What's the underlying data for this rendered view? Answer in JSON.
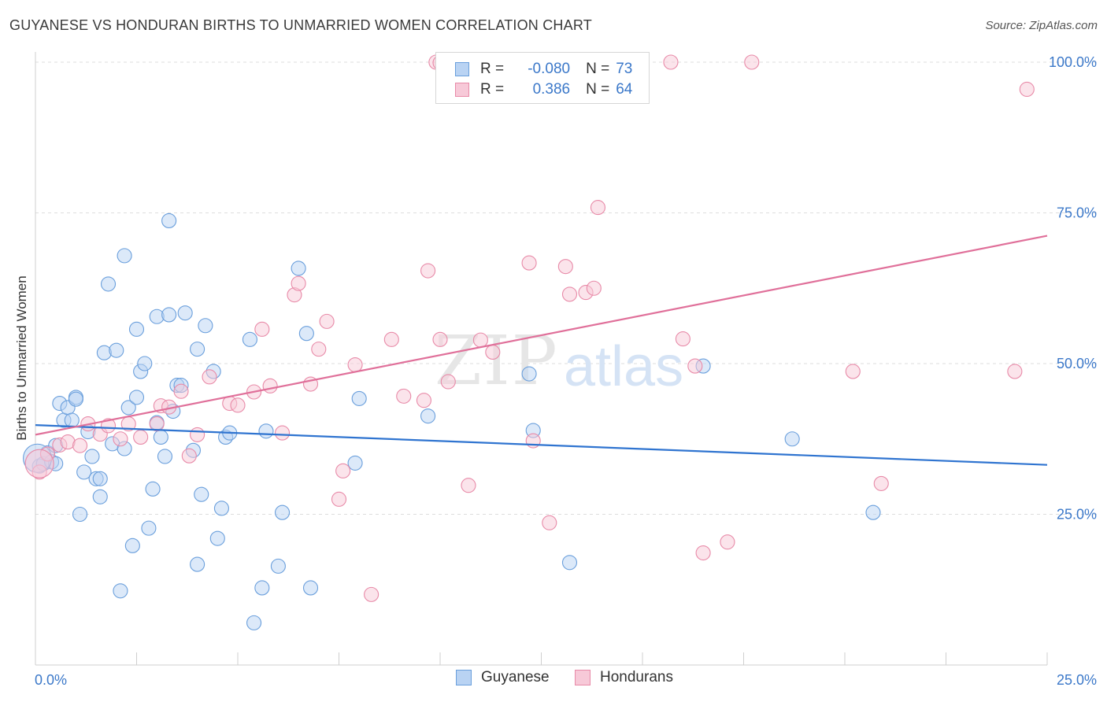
{
  "title": "GUYANESE VS HONDURAN BIRTHS TO UNMARRIED WOMEN CORRELATION CHART",
  "source": "Source: ZipAtlas.com",
  "watermark": {
    "zip": "ZIP",
    "atlas": "atlas"
  },
  "legend": {
    "rows": [
      {
        "r_label": "R =",
        "r_value": "-0.080",
        "n_label": "N =",
        "n_value": "73",
        "color": "#a9c8f0",
        "border": "#6a9fdc"
      },
      {
        "r_label": "R =",
        "r_value": "0.386",
        "n_label": "N =",
        "n_value": "64",
        "color": "#f6c1d2",
        "border": "#e88aa8"
      }
    ]
  },
  "bottom_legend": [
    {
      "label": "Guyanese",
      "color": "#b9d3f3",
      "border": "#6a9fdc"
    },
    {
      "label": "Hondurans",
      "color": "#f7c9d8",
      "border": "#e88aa8"
    }
  ],
  "chart_data": {
    "type": "scatter",
    "title": "GUYANESE VS HONDURAN BIRTHS TO UNMARRIED WOMEN CORRELATION CHART",
    "xlabel": "",
    "ylabel": "Births to Unmarried Women",
    "xlim": [
      0,
      25
    ],
    "ylim": [
      0,
      100
    ],
    "x_ticks": [
      "0.0%",
      "25.0%"
    ],
    "y_ticks": [
      "25.0%",
      "50.0%",
      "75.0%",
      "100.0%"
    ],
    "y_tick_values": [
      25,
      50,
      75,
      100
    ],
    "grid": true,
    "legend_position": "top-center",
    "series": [
      {
        "name": "Guyanese",
        "color": "#6a9fdc",
        "fill": "#b9d3f3",
        "line_color": "#2f74d0",
        "trend": [
          [
            0,
            39.8
          ],
          [
            25,
            33.2
          ]
        ],
        "points": [
          [
            0.1,
            33
          ],
          [
            0.2,
            33.4
          ],
          [
            0.3,
            35.2
          ],
          [
            0.4,
            33.7
          ],
          [
            0.5,
            33.4
          ],
          [
            0.5,
            36.4
          ],
          [
            0.6,
            43.4
          ],
          [
            0.7,
            40.6
          ],
          [
            0.8,
            42.7
          ],
          [
            0.9,
            40.6
          ],
          [
            1.0,
            44.4
          ],
          [
            1.0,
            44.1
          ],
          [
            1.1,
            25
          ],
          [
            1.2,
            32
          ],
          [
            1.3,
            38.7
          ],
          [
            1.4,
            34.6
          ],
          [
            1.5,
            30.9
          ],
          [
            1.6,
            30.9
          ],
          [
            1.6,
            27.9
          ],
          [
            1.7,
            51.8
          ],
          [
            1.8,
            63.2
          ],
          [
            1.9,
            36.7
          ],
          [
            2.0,
            52.2
          ],
          [
            2.1,
            12.3
          ],
          [
            2.2,
            35.9
          ],
          [
            2.2,
            67.9
          ],
          [
            2.3,
            42.7
          ],
          [
            2.4,
            19.8
          ],
          [
            2.5,
            44.4
          ],
          [
            2.5,
            55.7
          ],
          [
            2.6,
            48.7
          ],
          [
            2.7,
            50
          ],
          [
            2.8,
            22.7
          ],
          [
            2.9,
            29.2
          ],
          [
            3.0,
            40.2
          ],
          [
            3.0,
            57.8
          ],
          [
            3.1,
            37.8
          ],
          [
            3.2,
            34.6
          ],
          [
            3.3,
            58.1
          ],
          [
            3.3,
            73.7
          ],
          [
            3.4,
            42.1
          ],
          [
            3.5,
            46.4
          ],
          [
            3.6,
            46.4
          ],
          [
            3.7,
            58.4
          ],
          [
            3.9,
            35.6
          ],
          [
            4.0,
            52.4
          ],
          [
            4.0,
            16.7
          ],
          [
            4.1,
            28.3
          ],
          [
            4.2,
            56.3
          ],
          [
            4.4,
            48.7
          ],
          [
            4.5,
            21
          ],
          [
            4.6,
            26
          ],
          [
            4.7,
            37.8
          ],
          [
            4.8,
            38.5
          ],
          [
            5.3,
            54
          ],
          [
            5.4,
            7
          ],
          [
            5.6,
            12.8
          ],
          [
            5.7,
            38.8
          ],
          [
            6.0,
            16.4
          ],
          [
            6.1,
            25.3
          ],
          [
            6.5,
            65.8
          ],
          [
            6.7,
            55
          ],
          [
            6.8,
            12.8
          ],
          [
            7.9,
            33.5
          ],
          [
            8.0,
            44.2
          ],
          [
            9.7,
            41.3
          ],
          [
            12.2,
            48.3
          ],
          [
            12.3,
            38.9
          ],
          [
            13.2,
            17
          ],
          [
            16.5,
            49.6
          ],
          [
            18.7,
            37.5
          ],
          [
            20.7,
            25.3
          ],
          [
            0.05,
            34.3
          ]
        ]
      },
      {
        "name": "Hondurans",
        "color": "#e88aa8",
        "fill": "#f7c9d8",
        "line_color": "#e0709a",
        "trend": [
          [
            0,
            38.2
          ],
          [
            25,
            71.2
          ]
        ],
        "points": [
          [
            0.1,
            32
          ],
          [
            0.3,
            35
          ],
          [
            0.6,
            36.5
          ],
          [
            0.8,
            37
          ],
          [
            1.1,
            36.4
          ],
          [
            1.3,
            40
          ],
          [
            1.6,
            38.3
          ],
          [
            1.8,
            39.7
          ],
          [
            2.1,
            37.5
          ],
          [
            2.3,
            40
          ],
          [
            2.6,
            37.8
          ],
          [
            3.0,
            40
          ],
          [
            3.1,
            43
          ],
          [
            3.3,
            42.8
          ],
          [
            3.6,
            45.4
          ],
          [
            3.8,
            34.7
          ],
          [
            4.0,
            38.2
          ],
          [
            4.3,
            47.8
          ],
          [
            4.8,
            43.4
          ],
          [
            5.0,
            43.1
          ],
          [
            5.4,
            45.3
          ],
          [
            5.6,
            55.7
          ],
          [
            5.8,
            46.3
          ],
          [
            6.1,
            38.5
          ],
          [
            6.4,
            61.4
          ],
          [
            6.5,
            63.3
          ],
          [
            6.8,
            46.6
          ],
          [
            7.0,
            52.4
          ],
          [
            7.2,
            57
          ],
          [
            7.5,
            27.5
          ],
          [
            7.6,
            32.2
          ],
          [
            7.9,
            49.8
          ],
          [
            8.3,
            11.7
          ],
          [
            8.8,
            54
          ],
          [
            9.1,
            44.6
          ],
          [
            9.6,
            43.9
          ],
          [
            9.7,
            65.4
          ],
          [
            9.9,
            100
          ],
          [
            10.0,
            99.9
          ],
          [
            10.0,
            54
          ],
          [
            10.2,
            47
          ],
          [
            10.7,
            29.8
          ],
          [
            11.0,
            53.9
          ],
          [
            11.3,
            51.9
          ],
          [
            11.8,
            99.8
          ],
          [
            12.2,
            66.7
          ],
          [
            12.3,
            37.2
          ],
          [
            12.7,
            23.6
          ],
          [
            13.1,
            66.1
          ],
          [
            13.2,
            61.5
          ],
          [
            13.6,
            61.8
          ],
          [
            13.8,
            62.5
          ],
          [
            13.9,
            75.9
          ],
          [
            15.7,
            100
          ],
          [
            16.0,
            54.1
          ],
          [
            16.3,
            49.6
          ],
          [
            16.5,
            18.6
          ],
          [
            17.1,
            20.4
          ],
          [
            17.7,
            100
          ],
          [
            20.2,
            48.7
          ],
          [
            20.9,
            30.1
          ],
          [
            24.2,
            48.7
          ],
          [
            24.5,
            95.5
          ],
          [
            0.1,
            33.4
          ]
        ]
      }
    ]
  }
}
